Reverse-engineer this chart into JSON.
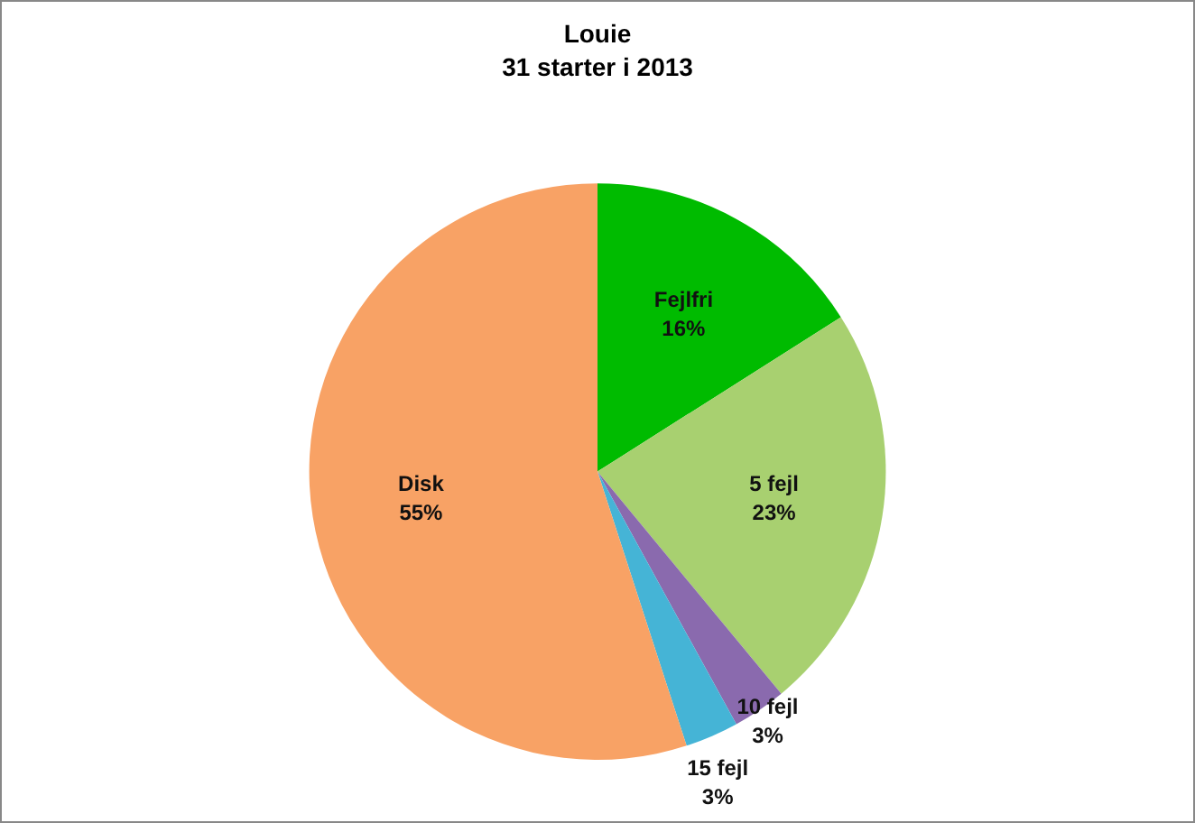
{
  "chart_data": {
    "type": "pie",
    "title": "Louie",
    "subtitle": "31 starter i 2013",
    "categories": [
      "Fejlfri",
      "5 fejl",
      "10 fejl",
      "15 fejl",
      "Disk"
    ],
    "values": [
      16,
      23,
      3,
      3,
      55
    ],
    "value_labels": [
      "16%",
      "23%",
      "3%",
      "3%",
      "55%"
    ],
    "colors": [
      "#00bb00",
      "#a8d070",
      "#8a6aae",
      "#45b4d6",
      "#f8a265"
    ],
    "legend": false
  }
}
